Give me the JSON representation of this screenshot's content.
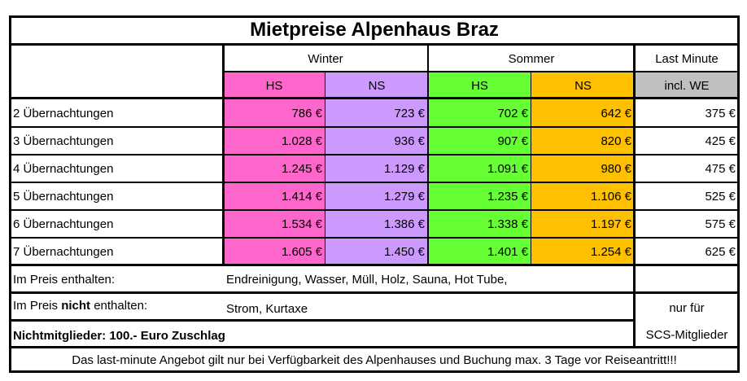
{
  "title": "Mietpreise Alpenhaus Braz",
  "header": {
    "winter": "Winter",
    "sommer": "Sommer",
    "last_minute": "Last Minute",
    "winter_hs": "HS",
    "winter_ns": "NS",
    "sommer_hs": "HS",
    "sommer_ns": "NS",
    "lm_sub": "incl. WE"
  },
  "colors": {
    "winter_hs": "#ff66cc",
    "winter_ns": "#cc99ff",
    "sommer_hs": "#66ff33",
    "sommer_ns": "#ffc000",
    "last_minute_header": "#c0c0c0"
  },
  "rows": [
    {
      "label": "2 Übernachtungen",
      "winter_hs": "786 €",
      "winter_ns": "723 €",
      "sommer_hs": "702 €",
      "sommer_ns": "642 €",
      "last_minute": "375 €"
    },
    {
      "label": "3 Übernachtungen",
      "winter_hs": "1.028 €",
      "winter_ns": "936 €",
      "sommer_hs": "907 €",
      "sommer_ns": "820 €",
      "last_minute": "425 €"
    },
    {
      "label": "4 Übernachtungen",
      "winter_hs": "1.245 €",
      "winter_ns": "1.129 €",
      "sommer_hs": "1.091 €",
      "sommer_ns": "980 €",
      "last_minute": "475 €"
    },
    {
      "label": "5 Übernachtungen",
      "winter_hs": "1.414 €",
      "winter_ns": "1.279 €",
      "sommer_hs": "1.235 €",
      "sommer_ns": "1.106 €",
      "last_minute": "525 €"
    },
    {
      "label": "6 Übernachtungen",
      "winter_hs": "1.534 €",
      "winter_ns": "1.386 €",
      "sommer_hs": "1.338 €",
      "sommer_ns": "1.197 €",
      "last_minute": "575 €"
    },
    {
      "label": "7 Übernachtungen",
      "winter_hs": "1.605 €",
      "winter_ns": "1.450 €",
      "sommer_hs": "1.401 €",
      "sommer_ns": "1.254 €",
      "last_minute": "625 €"
    }
  ],
  "footer": {
    "included_label": "Im Preis enthalten:",
    "included_value": "Endreinigung, Wasser, Müll, Holz, Sauna, Hot Tube,",
    "not_included_pre": "Im Preis ",
    "not_included_bold": "nicht",
    "not_included_post": " enthalten:",
    "not_included_value": "Strom, Kurtaxe",
    "members_note_1": "nur für",
    "members_note_2": "SCS-Mitglieder",
    "surcharge": "Nichtmitglieder: 100.- Euro Zuschlag",
    "disclaimer": "Das last-minute Angebot gilt nur bei Verfügbarkeit des Alpenhauses und Buchung max. 3 Tage vor Reiseantritt!!!"
  }
}
